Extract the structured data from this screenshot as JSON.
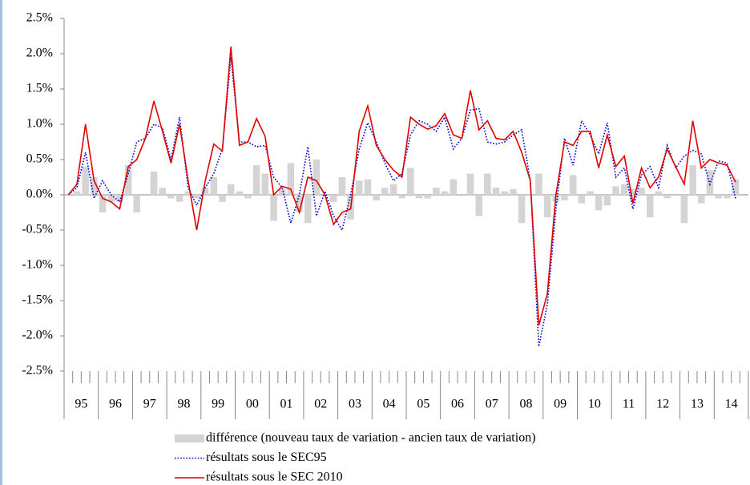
{
  "chart_data": {
    "type": "bar-line",
    "categories": [
      "95",
      null,
      null,
      null,
      "96",
      null,
      null,
      null,
      "97",
      null,
      null,
      null,
      "98",
      null,
      null,
      null,
      "99",
      null,
      null,
      null,
      "00",
      null,
      null,
      null,
      "01",
      null,
      null,
      null,
      "02",
      null,
      null,
      null,
      "03",
      null,
      null,
      null,
      "04",
      null,
      null,
      null,
      "05",
      null,
      null,
      null,
      "06",
      null,
      null,
      null,
      "07",
      null,
      null,
      null,
      "08",
      null,
      null,
      null,
      "09",
      null,
      null,
      null,
      "10",
      null,
      null,
      null,
      "11",
      null,
      null,
      null,
      "12",
      null,
      null,
      null,
      "13",
      null,
      null,
      null,
      "14",
      null,
      null,
      null
    ],
    "series": [
      {
        "name": "différence (nouveau taux de variation - ancien taux de variation)",
        "kind": "bar",
        "color": "#d4d4d4",
        "values": [
          0,
          0.05,
          0.4,
          0.25,
          -0.25,
          -0.1,
          -0.1,
          0.42,
          -0.25,
          0,
          0.33,
          0.1,
          -0.05,
          -0.1,
          0.05,
          -0.05,
          0.1,
          0.25,
          -0.1,
          0.15,
          0.05,
          -0.05,
          0.42,
          0.3,
          -0.37,
          0.08,
          0.45,
          -0.25,
          -0.4,
          0.5,
          0,
          -0.1,
          0.25,
          -0.35,
          0.2,
          0.22,
          -0.08,
          0.1,
          0.15,
          -0.05,
          0.38,
          -0.05,
          -0.05,
          0.1,
          0.05,
          0.22,
          0,
          0.3,
          -0.3,
          0.3,
          0.1,
          0.05,
          0.08,
          -0.4,
          0,
          0.3,
          -0.32,
          -0.1,
          -0.08,
          0.28,
          -0.12,
          0.05,
          -0.22,
          -0.15,
          0.12,
          0.15,
          0.08,
          0.1,
          -0.32,
          0.05,
          -0.05,
          0,
          -0.4,
          0.42,
          -0.12,
          0.35,
          -0.05,
          -0.05,
          0.22,
          null
        ]
      },
      {
        "name": "résultats sous le SEC95",
        "kind": "line",
        "style": "dotted",
        "color": "#0000cc",
        "values": [
          0,
          0.1,
          0.6,
          -0.05,
          0.2,
          0,
          -0.1,
          0.3,
          0.75,
          0.8,
          1.0,
          0.95,
          0.5,
          1.1,
          0.1,
          -0.15,
          0.1,
          0.3,
          0.65,
          1.95,
          0.75,
          0.75,
          0.68,
          0.7,
          0.25,
          0.1,
          -0.4,
          0,
          0.68,
          -0.3,
          0.05,
          -0.3,
          -0.5,
          0,
          0.65,
          1.02,
          0.75,
          0.45,
          0.2,
          0.3,
          0.85,
          1.05,
          1.0,
          0.9,
          1.1,
          0.65,
          0.8,
          1.2,
          1.22,
          0.75,
          0.72,
          0.75,
          0.85,
          0.92,
          0.2,
          -2.15,
          -1.55,
          -0.2,
          0.8,
          0.42,
          1.05,
          0.85,
          0.58,
          1.02,
          0.25,
          0.38,
          -0.2,
          0.28,
          0.4,
          0.1,
          0.7,
          0.38,
          0.55,
          0.63,
          0.58,
          0.15,
          0.48,
          0.45,
          -0.05,
          null
        ]
      },
      {
        "name": "résultats sous le SEC 2010",
        "kind": "line",
        "style": "solid",
        "color": "#e00000",
        "values": [
          0,
          0.15,
          1.0,
          0.2,
          -0.05,
          -0.1,
          -0.2,
          0.4,
          0.5,
          0.8,
          1.33,
          0.9,
          0.45,
          1.0,
          0.2,
          -0.5,
          0.2,
          0.72,
          0.62,
          2.1,
          0.7,
          0.75,
          1.08,
          0.83,
          0,
          0.12,
          0.08,
          -0.25,
          0.25,
          0.2,
          0,
          -0.42,
          -0.25,
          -0.2,
          0.9,
          1.26,
          0.7,
          0.5,
          0.35,
          0.25,
          1.1,
          1.0,
          0.93,
          0.98,
          1.15,
          0.85,
          0.8,
          1.48,
          0.92,
          1.05,
          0.8,
          0.78,
          0.9,
          0.6,
          0.2,
          -1.85,
          -1.4,
          0,
          0.75,
          0.7,
          0.9,
          0.9,
          0.38,
          0.85,
          0.4,
          0.55,
          -0.12,
          0.38,
          0.1,
          0.25,
          0.65,
          0.4,
          0.15,
          1.05,
          0.38,
          0.5,
          0.45,
          0.42,
          0.18,
          null
        ]
      }
    ],
    "ylim": [
      -2.5,
      2.5
    ],
    "yticks": [
      {
        "value": -2.5,
        "label": "-2.5%"
      },
      {
        "value": -2,
        "label": "-2.0%"
      },
      {
        "value": -1.5,
        "label": "-1.5%"
      },
      {
        "value": -1,
        "label": "-1.0%"
      },
      {
        "value": -0.5,
        "label": "-0.5%"
      },
      {
        "value": 0,
        "label": "0.0%"
      },
      {
        "value": 0.5,
        "label": "0.5%"
      },
      {
        "value": 1,
        "label": "1.0%"
      },
      {
        "value": 1.5,
        "label": "1.5%"
      },
      {
        "value": 2,
        "label": "2.0%"
      },
      {
        "value": 2.5,
        "label": "2.5%"
      }
    ],
    "legend": "bottom"
  }
}
